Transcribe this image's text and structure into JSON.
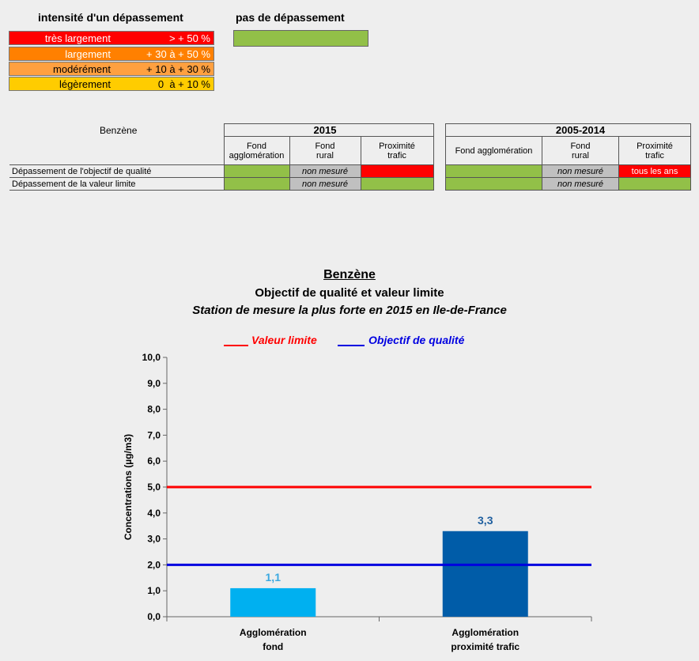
{
  "legend": {
    "intensity_title": "intensité d'un dépassement",
    "no_exceed_title": "pas de dépassement",
    "levels": [
      {
        "label": "très largement",
        "range": "> + 50 %",
        "color": "#ff0000"
      },
      {
        "label": "largement",
        "range": "+ 30 à + 50 %",
        "color": "#ff8000"
      },
      {
        "label": "modérément",
        "range": "+ 10 à + 30 %",
        "color": "#ffa040"
      },
      {
        "label": "légèrement",
        "range": "0  à + 10 %",
        "color": "#ffcc00"
      }
    ],
    "no_exceed_color": "#92c048"
  },
  "table": {
    "pollutant": "Benzène",
    "year1": "2015",
    "year2": "2005-2014",
    "col_fond_agglo_1": "Fond",
    "col_fond_agglo_2": "agglomération",
    "col_fond_agglo_single": "Fond agglomération",
    "col_fond_rural_1": "Fond",
    "col_fond_rural_2": "rural",
    "col_prox_1": "Proximité",
    "col_prox_2": "trafic",
    "row1_label": "Dépassement de l'objectif de qualité",
    "row2_label": "Dépassement de la valeur limite",
    "not_measured": "non mesuré",
    "every_year": "tous les ans"
  },
  "chart_data": {
    "type": "bar",
    "title": "Benzène",
    "subtitle": "Objectif de qualité et valeur limite",
    "subtitle2": "Station de mesure la plus forte en 2015 en Ile-de-France",
    "ylabel": "Concentrations (µg/m3)",
    "ylim": [
      0,
      10
    ],
    "yticks": [
      "0,0",
      "1,0",
      "2,0",
      "3,0",
      "4,0",
      "5,0",
      "6,0",
      "7,0",
      "8,0",
      "9,0",
      "10,0"
    ],
    "categories": [
      {
        "line1": "Agglomération",
        "line2": "fond"
      },
      {
        "line1": "Agglomération",
        "line2": "proximité trafic"
      }
    ],
    "values": [
      1.1,
      3.3
    ],
    "value_labels": [
      "1,1",
      "3,3"
    ],
    "bar_colors": [
      "#00b0f0",
      "#005ca8"
    ],
    "label_colors": [
      "#3aa8e0",
      "#1f5f9f"
    ],
    "lines": [
      {
        "name": "Valeur limite",
        "value": 5.0,
        "color": "#ff0000"
      },
      {
        "name": "Objectif de qualité",
        "value": 2.0,
        "color": "#0000e0"
      }
    ]
  }
}
